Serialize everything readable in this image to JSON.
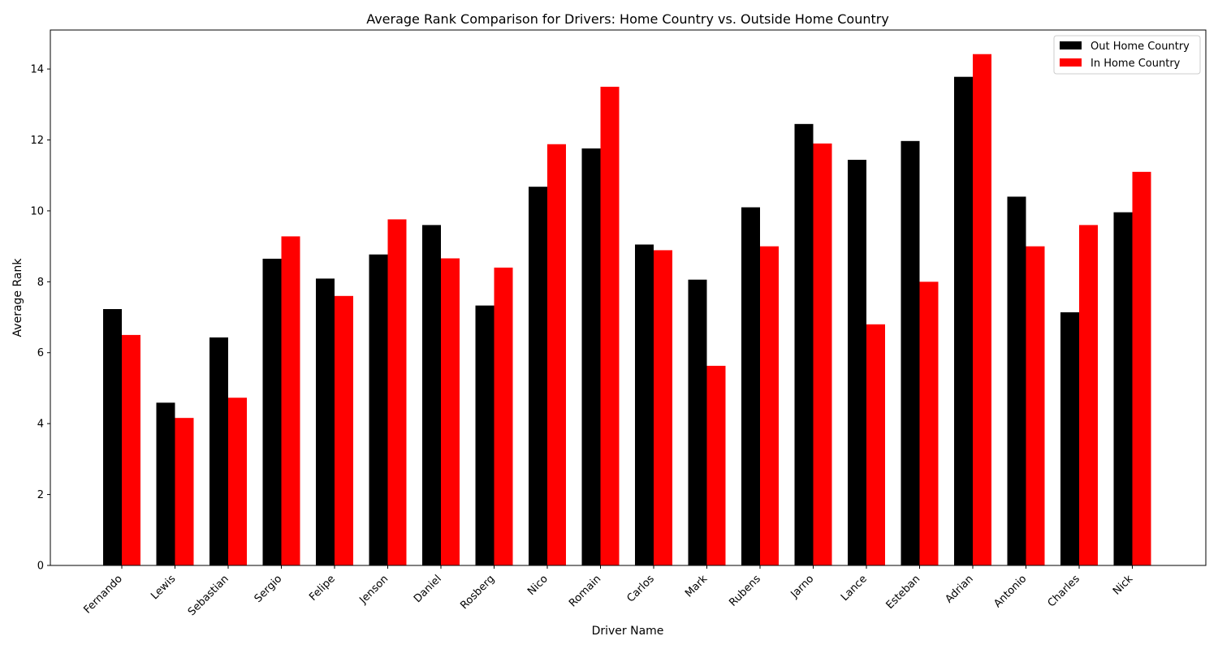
{
  "chart_data": {
    "type": "bar",
    "title": "Average Rank Comparison for Drivers: Home Country vs. Outside Home Country",
    "xlabel": "Driver Name",
    "ylabel": "Average Rank",
    "ylim": [
      0,
      15.1
    ],
    "yticks": [
      0,
      2,
      4,
      6,
      8,
      10,
      12,
      14
    ],
    "grid": false,
    "legend_position": "top-right",
    "categories": [
      "Fernando",
      "Lewis",
      "Sebastian",
      "Sergio",
      "Felipe",
      "Jenson",
      "Daniel",
      "Rosberg",
      "Nico",
      "Romain",
      "Carlos",
      "Mark",
      "Rubens",
      "Jarno",
      "Lance",
      "Esteban",
      "Adrian",
      "Antonio",
      "Charles",
      "Nick"
    ],
    "series": [
      {
        "name": "Out Home Country",
        "color": "#000000",
        "values": [
          7.23,
          4.59,
          6.43,
          8.65,
          8.09,
          8.77,
          9.6,
          7.33,
          10.68,
          11.76,
          9.05,
          8.06,
          10.1,
          12.45,
          11.44,
          11.97,
          13.78,
          10.4,
          7.14,
          9.96
        ]
      },
      {
        "name": "In Home Country",
        "color": "#ff0000",
        "values": [
          6.5,
          4.16,
          4.73,
          9.28,
          7.6,
          9.76,
          8.66,
          8.4,
          11.88,
          13.5,
          8.89,
          5.63,
          9.0,
          11.9,
          6.8,
          8.0,
          14.42,
          9.0,
          9.6,
          11.1
        ]
      }
    ]
  }
}
